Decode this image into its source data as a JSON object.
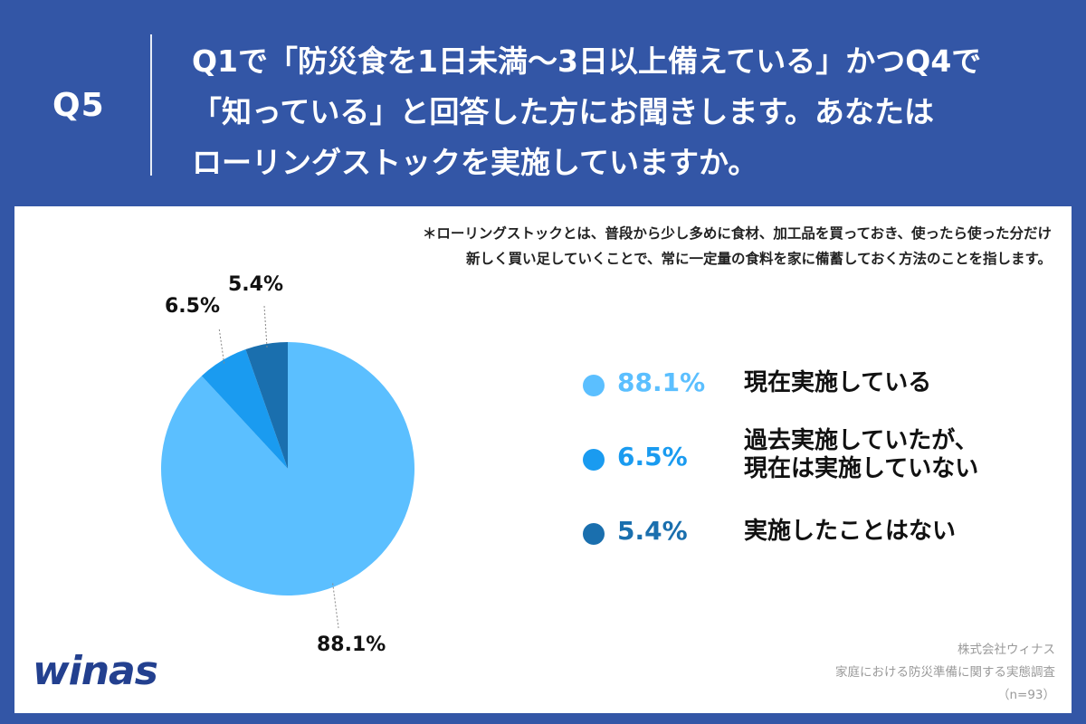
{
  "header": {
    "question_number": "Q5",
    "question_text": "Q1で「防災食を1日未満〜3日以上備えている」かつQ4で\n「知っている」と回答した方にお聞きします。あなたは\nローリングストックを実施していますか。"
  },
  "note": "＊ローリングストックとは、普段から少し多めに食材、加工品を買っておき、使ったら使った分だけ\n新しく買い足していくことで、常に一定量の食料を家に備蓄しておく方法のことを指します。",
  "logo": "winas",
  "source": {
    "company": "株式会社ウィナス",
    "survey": "家庭における防災準備に関する実態調査",
    "sample": "（n=93）"
  },
  "chart_data": {
    "type": "pie",
    "title": "",
    "slices": [
      {
        "label": "現在実施している",
        "value": 88.1,
        "display": "88.1%",
        "color": "#5bbfff"
      },
      {
        "label": "過去実施していたが、\n現在は実施していない",
        "value": 6.5,
        "display": "6.5%",
        "color": "#1a9bf0"
      },
      {
        "label": "実施したことはない",
        "value": 5.4,
        "display": "5.4%",
        "color": "#1a6fae"
      }
    ],
    "legend_placement": "right"
  }
}
